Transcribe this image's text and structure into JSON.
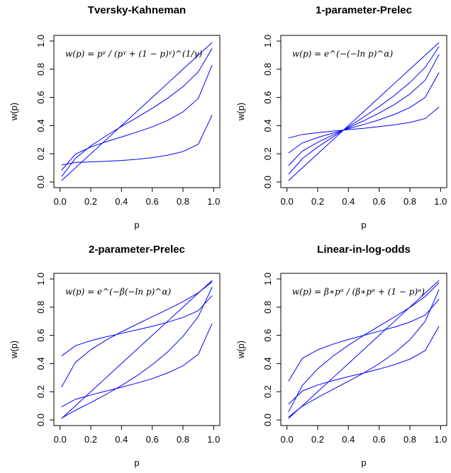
{
  "chart_data": [
    {
      "type": "line",
      "title": "Tversky-Kahneman",
      "x_label": "p",
      "y_label": "w(p)",
      "annotation": "w(p) = pᵞ / (pᵞ + (1 − p)ᵞ)^(1/γ)",
      "x": [
        0.01,
        0.1,
        0.2,
        0.3,
        0.4,
        0.5,
        0.6,
        0.7,
        0.8,
        0.9,
        0.99
      ],
      "series": [
        {
          "color": "#0000ff",
          "values": [
            0.12,
            0.139,
            0.143,
            0.147,
            0.153,
            0.161,
            0.173,
            0.19,
            0.216,
            0.268,
            0.476
          ]
        },
        {
          "color": "#0000ff",
          "values": [
            0.083,
            0.198,
            0.248,
            0.286,
            0.319,
            0.354,
            0.391,
            0.437,
            0.497,
            0.593,
            0.83
          ]
        },
        {
          "color": "#0000ff",
          "values": [
            0.038,
            0.168,
            0.256,
            0.328,
            0.394,
            0.457,
            0.523,
            0.594,
            0.676,
            0.782,
            0.948
          ]
        },
        {
          "color": "#0000ff",
          "values": [
            0.01,
            0.1,
            0.2,
            0.3,
            0.4,
            0.5,
            0.6,
            0.7,
            0.8,
            0.9,
            0.99
          ]
        }
      ],
      "xlim": [
        -0.04,
        1.04
      ],
      "ylim": [
        -0.04,
        1.04
      ],
      "xticks": [
        {
          "value": 0,
          "label": "0.0"
        },
        0.2,
        0.4,
        0.6,
        0.8,
        {
          "value": 1,
          "label": "1.0"
        }
      ],
      "yticks": [
        {
          "value": 0,
          "label": "0.0"
        },
        0.2,
        0.4,
        0.6,
        0.8,
        {
          "value": 1,
          "label": "1.0"
        }
      ]
    },
    {
      "type": "line",
      "title": "1-parameter-Prelec",
      "x_label": "p",
      "y_label": "w(p)",
      "annotation": "w(p) = e^(−(−ln p)^α)",
      "x": [
        0.01,
        0.1,
        0.2,
        0.3,
        0.4,
        0.5,
        0.6,
        0.7,
        0.8,
        0.9,
        0.99
      ],
      "series": [
        {
          "color": "#0000ff",
          "values": [
            0.312,
            0.337,
            0.35,
            0.361,
            0.371,
            0.381,
            0.393,
            0.406,
            0.423,
            0.45,
            0.532
          ]
        },
        {
          "color": "#0000ff",
          "values": [
            0.206,
            0.277,
            0.316,
            0.347,
            0.378,
            0.408,
            0.441,
            0.48,
            0.528,
            0.601,
            0.777
          ]
        },
        {
          "color": "#0000ff",
          "values": [
            0.117,
            0.219,
            0.281,
            0.334,
            0.384,
            0.435,
            0.489,
            0.55,
            0.624,
            0.723,
            0.905
          ]
        },
        {
          "color": "#0000ff",
          "values": [
            0.054,
            0.166,
            0.248,
            0.32,
            0.391,
            0.461,
            0.535,
            0.615,
            0.705,
            0.814,
            0.961
          ]
        },
        {
          "color": "#0000ff",
          "values": [
            0.01,
            0.1,
            0.2,
            0.3,
            0.4,
            0.5,
            0.6,
            0.7,
            0.8,
            0.9,
            0.99
          ]
        }
      ],
      "xlim": [
        -0.04,
        1.04
      ],
      "ylim": [
        -0.04,
        1.04
      ],
      "xticks": [
        {
          "value": 0,
          "label": "0.0"
        },
        0.2,
        0.4,
        0.6,
        0.8,
        {
          "value": 1,
          "label": "1.0"
        }
      ],
      "yticks": [
        {
          "value": 0,
          "label": "0.0"
        },
        0.2,
        0.4,
        0.6,
        0.8,
        {
          "value": 1,
          "label": "1.0"
        }
      ]
    },
    {
      "type": "line",
      "title": "2-parameter-Prelec",
      "x_label": "p",
      "y_label": "w(p)",
      "annotation": "w(p) = e^(−β(−ln p)^α)",
      "x": [
        0.01,
        0.1,
        0.2,
        0.3,
        0.4,
        0.5,
        0.6,
        0.7,
        0.8,
        0.9,
        0.99
      ],
      "series": [
        {
          "color": "#0000ff",
          "values": [
            0.454,
            0.526,
            0.562,
            0.59,
            0.614,
            0.639,
            0.664,
            0.693,
            0.727,
            0.775,
            0.882
          ]
        },
        {
          "color": "#0000ff",
          "values": [
            0.093,
            0.146,
            0.177,
            0.205,
            0.232,
            0.261,
            0.293,
            0.333,
            0.384,
            0.466,
            0.685
          ]
        },
        {
          "color": "#0000ff",
          "values": [
            0.233,
            0.408,
            0.498,
            0.566,
            0.625,
            0.679,
            0.732,
            0.784,
            0.839,
            0.902,
            0.98
          ]
        },
        {
          "color": "#0000ff",
          "values": [
            0.013,
            0.068,
            0.123,
            0.181,
            0.244,
            0.313,
            0.392,
            0.482,
            0.592,
            0.734,
            0.942
          ]
        },
        {
          "color": "#0000ff",
          "values": [
            0.01,
            0.1,
            0.2,
            0.3,
            0.4,
            0.5,
            0.6,
            0.7,
            0.8,
            0.9,
            0.99
          ]
        }
      ],
      "xlim": [
        -0.04,
        1.04
      ],
      "ylim": [
        -0.04,
        1.04
      ],
      "xticks": [
        {
          "value": 0,
          "label": "0.0"
        },
        0.2,
        0.4,
        0.6,
        0.8,
        {
          "value": 1,
          "label": "1.0"
        }
      ],
      "yticks": [
        {
          "value": 0,
          "label": "0.0"
        },
        0.2,
        0.4,
        0.6,
        0.8,
        {
          "value": 1,
          "label": "1.0"
        }
      ]
    },
    {
      "type": "line",
      "title": "Linear-in-log-odds",
      "x_label": "p",
      "y_label": "w(p)",
      "annotation": "w(p) = β∗pᵅ / (β∗pᵅ + (1 − p)ᵅ)",
      "x": [
        0.01,
        0.1,
        0.2,
        0.3,
        0.4,
        0.5,
        0.6,
        0.7,
        0.8,
        0.9,
        0.99
      ],
      "series": [
        {
          "color": "#0000ff",
          "values": [
            0.112,
            0.205,
            0.248,
            0.279,
            0.307,
            0.333,
            0.361,
            0.392,
            0.431,
            0.492,
            0.665
          ]
        },
        {
          "color": "#0000ff",
          "values": [
            0.274,
            0.437,
            0.497,
            0.538,
            0.571,
            0.6,
            0.629,
            0.659,
            0.694,
            0.744,
            0.856
          ]
        },
        {
          "color": "#0000ff",
          "values": [
            0.02,
            0.097,
            0.159,
            0.217,
            0.274,
            0.333,
            0.399,
            0.475,
            0.569,
            0.7,
            0.926
          ]
        },
        {
          "color": "#0000ff",
          "values": [
            0.057,
            0.244,
            0.362,
            0.453,
            0.53,
            0.6,
            0.666,
            0.731,
            0.798,
            0.875,
            0.974
          ]
        },
        {
          "color": "#0000ff",
          "values": [
            0.01,
            0.1,
            0.2,
            0.3,
            0.4,
            0.5,
            0.6,
            0.7,
            0.8,
            0.9,
            0.99
          ]
        }
      ],
      "xlim": [
        -0.04,
        1.04
      ],
      "ylim": [
        -0.04,
        1.04
      ],
      "xticks": [
        {
          "value": 0,
          "label": "0.0"
        },
        0.2,
        0.4,
        0.6,
        0.8,
        {
          "value": 1,
          "label": "1.0"
        }
      ],
      "yticks": [
        {
          "value": 0,
          "label": "0.0"
        },
        0.2,
        0.4,
        0.6,
        0.8,
        {
          "value": 1,
          "label": "1.0"
        }
      ]
    }
  ]
}
